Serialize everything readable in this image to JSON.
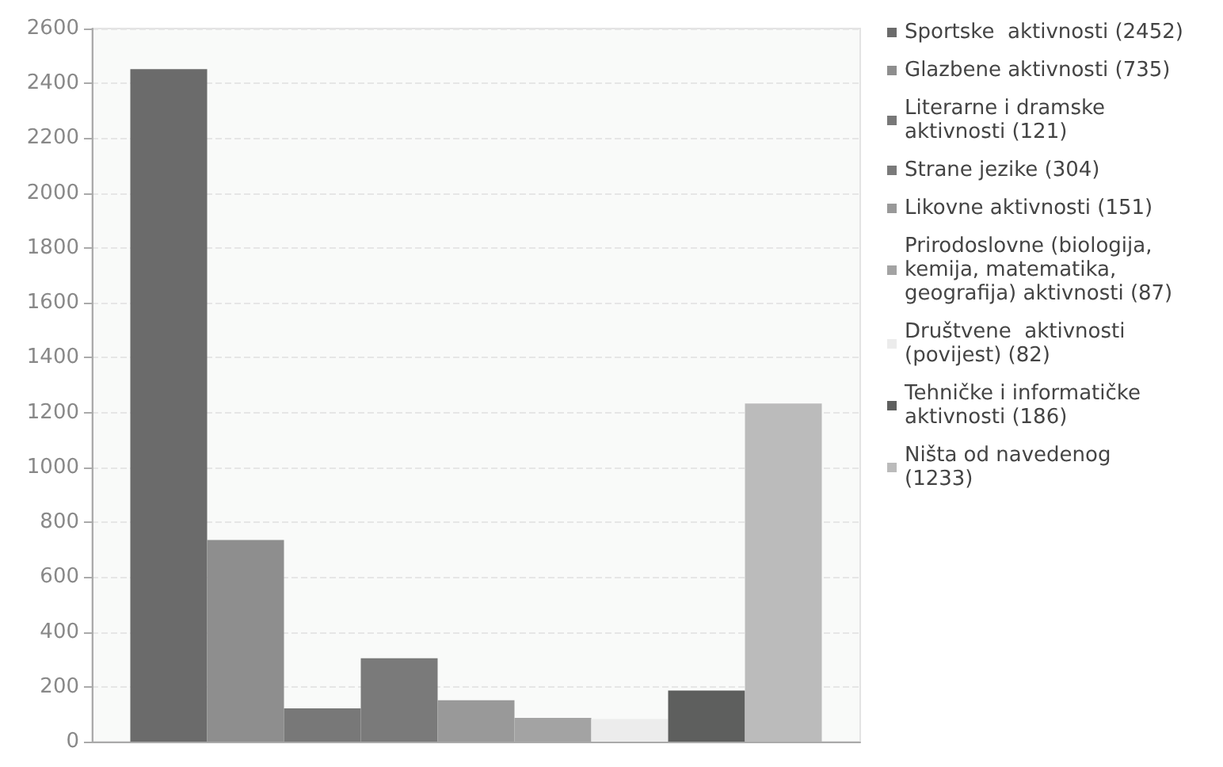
{
  "chart_data": {
    "type": "bar",
    "categories": [
      null
    ],
    "series": [
      {
        "name": "Sportske  aktivnosti (2452)",
        "color": "#6b6b6b",
        "values": [
          2452
        ]
      },
      {
        "name": "Glazbene aktivnosti (735)",
        "color": "#8e8e8e",
        "values": [
          735
        ]
      },
      {
        "name": "Literarne i dramske aktivnosti (121)",
        "color": "#787878",
        "values": [
          121
        ]
      },
      {
        "name": "Strane jezike (304)",
        "color": "#7a7a7a",
        "values": [
          304
        ]
      },
      {
        "name": "Likovne aktivnosti (151)",
        "color": "#999999",
        "values": [
          151
        ]
      },
      {
        "name": "Prirodoslovne (biologija, kemija, matematika, geografija) aktivnosti (87)",
        "color": "#a3a3a3",
        "values": [
          87
        ]
      },
      {
        "name": "Društvene  aktivnosti (povijest) (82)",
        "color": "#ececec",
        "values": [
          82
        ]
      },
      {
        "name": "Tehničke i informatičke aktivnosti (186)",
        "color": "#5e5f5e",
        "values": [
          186
        ]
      },
      {
        "name": "Ništa od navedenog (1233)",
        "color": "#bbbbbb",
        "values": [
          1233
        ]
      }
    ],
    "ylim": [
      0,
      2600
    ],
    "yticks": [
      0,
      200,
      400,
      600,
      800,
      1000,
      1200,
      1400,
      1600,
      1800,
      2000,
      2200,
      2400,
      2600
    ],
    "grid": "y",
    "legend": "right"
  }
}
